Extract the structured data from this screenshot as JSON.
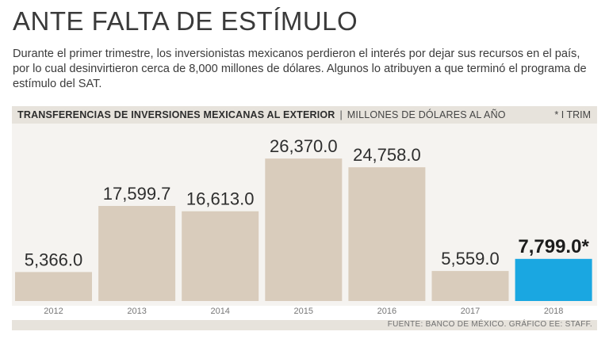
{
  "title": "ANTE FALTA DE ESTÍMULO",
  "subtitle": "Durante el primer trimestre, los inversionistas mexicanos perdieron el interés por dejar sus recursos en el país, por lo cual desinvirtieron cerca de 8,000 millones de dólares. Algunos lo atribuyen a que terminó el programa de estímulo del SAT.",
  "header": {
    "label": "TRANSFERENCIAS DE INVERSIONES MEXICANAS AL EXTERIOR",
    "separator": "|",
    "units": "MILLONES DE DÓLARES AL AÑO",
    "note": "* I TRIM"
  },
  "footer": {
    "source": "FUENTE: BANCO DE MÉXICO. GRÁFICO EE: STAFF."
  },
  "colors": {
    "bar": "#d9ccbc",
    "highlight": "#1aa7e1"
  },
  "chart_data": {
    "type": "bar",
    "title": "TRANSFERENCIAS DE INVERSIONES MEXICANAS AL EXTERIOR",
    "ylabel": "MILLONES DE DÓLARES AL AÑO",
    "xlabel": "",
    "categories": [
      "2012",
      "2013",
      "2014",
      "2015",
      "2016",
      "2017",
      "2018"
    ],
    "values": [
      5366.0,
      17599.7,
      16613.0,
      26370.0,
      24758.0,
      5559.0,
      7799.0
    ],
    "value_labels": [
      "5,366.0",
      "17,599.7",
      "16,613.0",
      "26,370.0",
      "24,758.0",
      "5,559.0",
      "7,799.0*"
    ],
    "highlight_index": 6,
    "ylim": [
      0,
      30500
    ],
    "grid": false
  }
}
